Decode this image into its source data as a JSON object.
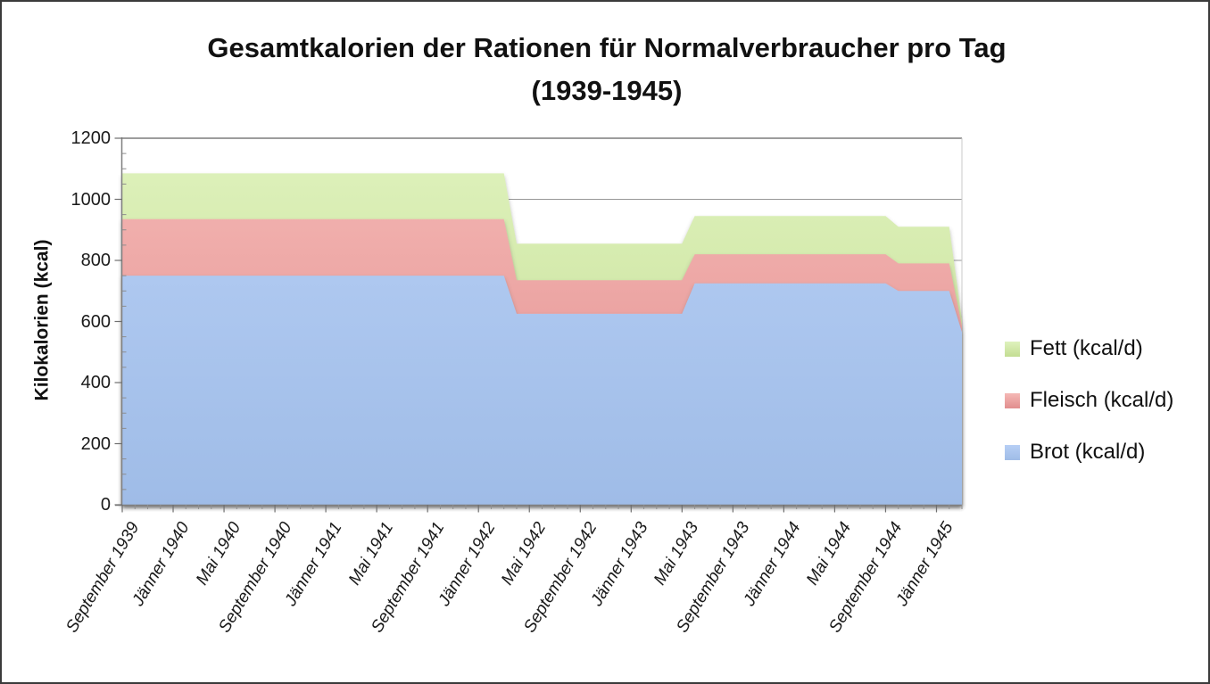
{
  "chart_data": {
    "type": "area",
    "stacked": true,
    "title": "Gesamtkalorien der Rationen für Normalverbraucher pro Tag (1939-1945)",
    "title_lines": [
      "Gesamtkalorien der Rationen für Normalverbraucher pro Tag",
      "(1939-1945)"
    ],
    "ylabel": "Kilokalorien (kcal)",
    "ylim": [
      0,
      1200
    ],
    "y_major_step": 200,
    "y_minor_step": 50,
    "y_tick_labels": [
      "0",
      "200",
      "400",
      "600",
      "800",
      "1000",
      "1200"
    ],
    "grid": "horizontal",
    "legend_position": "right",
    "points_per_x_tick": 4,
    "x_tick_labels": [
      "September 1939",
      "Jänner 1940",
      "Mai 1940",
      "September 1940",
      "Jänner 1941",
      "Mai 1941",
      "September 1941",
      "Jänner 1942",
      "Mai 1942",
      "September 1942",
      "Jänner 1943",
      "Mai 1943",
      "September 1943",
      "Jänner 1944",
      "Mai 1944",
      "September 1944",
      "Jänner 1945"
    ],
    "series": [
      {
        "name": "Brot (kcal/d)",
        "color": "#a6c1ec",
        "color_light": "#b7cff5",
        "color_dark": "#9fbce7",
        "values": [
          750,
          750,
          750,
          750,
          750,
          750,
          750,
          750,
          750,
          750,
          750,
          750,
          750,
          750,
          750,
          750,
          750,
          750,
          750,
          750,
          750,
          750,
          750,
          750,
          750,
          750,
          750,
          750,
          750,
          750,
          750,
          625,
          625,
          625,
          625,
          625,
          625,
          625,
          625,
          625,
          625,
          625,
          625,
          625,
          625,
          725,
          725,
          725,
          725,
          725,
          725,
          725,
          725,
          725,
          725,
          725,
          725,
          725,
          725,
          725,
          725,
          700,
          700,
          700,
          700,
          700,
          565
        ]
      },
      {
        "name": "Fleisch (kcal/d)",
        "color": "#e79494",
        "color_light": "#f5b8b5",
        "color_dark": "#e18e8e",
        "values": [
          185,
          185,
          185,
          185,
          185,
          185,
          185,
          185,
          185,
          185,
          185,
          185,
          185,
          185,
          185,
          185,
          185,
          185,
          185,
          185,
          185,
          185,
          185,
          185,
          185,
          185,
          185,
          185,
          185,
          185,
          185,
          110,
          110,
          110,
          110,
          110,
          110,
          110,
          110,
          110,
          110,
          110,
          110,
          110,
          110,
          95,
          95,
          95,
          95,
          95,
          95,
          95,
          95,
          95,
          95,
          95,
          95,
          95,
          95,
          95,
          95,
          90,
          90,
          90,
          90,
          90,
          20
        ]
      },
      {
        "name": "Fett (kcal/d)",
        "color": "#c6e29a",
        "color_light": "#dff2bd",
        "color_dark": "#c3dd92",
        "values": [
          150,
          150,
          150,
          150,
          150,
          150,
          150,
          150,
          150,
          150,
          150,
          150,
          150,
          150,
          150,
          150,
          150,
          150,
          150,
          150,
          150,
          150,
          150,
          150,
          150,
          150,
          150,
          150,
          150,
          150,
          150,
          120,
          120,
          120,
          120,
          120,
          120,
          120,
          120,
          120,
          120,
          120,
          120,
          120,
          120,
          125,
          125,
          125,
          125,
          125,
          125,
          125,
          125,
          125,
          125,
          125,
          125,
          125,
          125,
          125,
          125,
          120,
          120,
          120,
          120,
          120,
          20
        ]
      }
    ]
  }
}
